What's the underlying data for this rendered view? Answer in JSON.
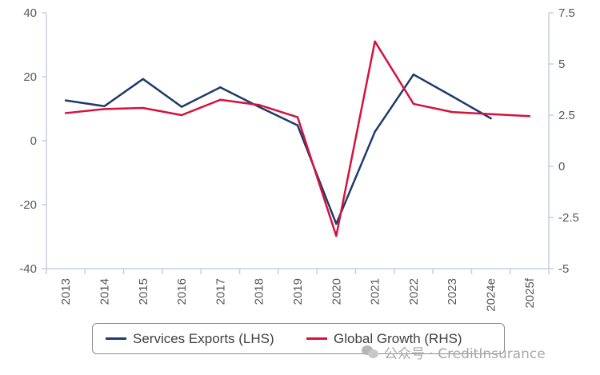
{
  "chart_data": {
    "type": "line",
    "categories": [
      "2013",
      "2014",
      "2015",
      "2016",
      "2017",
      "2018",
      "2019",
      "2020",
      "2021",
      "2022",
      "2023",
      "2024e",
      "2025f"
    ],
    "series": [
      {
        "name": "Services Exports (LHS)",
        "axis": "left",
        "color": "#1f3a6b",
        "values": [
          12.6,
          10.8,
          19.3,
          10.6,
          16.7,
          10.6,
          4.8,
          -26.0,
          2.8,
          20.7,
          13.9,
          7.0,
          null
        ]
      },
      {
        "name": "Global Growth (RHS)",
        "axis": "right",
        "color": "#d4123e",
        "values": [
          2.6,
          2.8,
          2.85,
          2.5,
          3.25,
          3.0,
          2.4,
          -3.4,
          6.1,
          3.05,
          2.65,
          2.55,
          2.45
        ]
      }
    ],
    "y_left": {
      "ylim": [
        -40,
        40
      ],
      "ticks": [
        "40",
        "20",
        "0",
        "-20",
        "-40"
      ]
    },
    "y_right": {
      "ylim": [
        -5,
        7.5
      ],
      "ticks": [
        "7.5",
        "5",
        "2.5",
        "0",
        "-2.5",
        "-5"
      ]
    },
    "grid": false,
    "legend_position": "bottom"
  },
  "legend": {
    "items": [
      {
        "label": "Services Exports (LHS)",
        "color": "#1f3a6b"
      },
      {
        "label": "Global Growth (RHS)",
        "color": "#d4123e"
      }
    ]
  },
  "watermark": {
    "text": "公众号 · CreditInsurance",
    "icon": "wechat-icon"
  }
}
